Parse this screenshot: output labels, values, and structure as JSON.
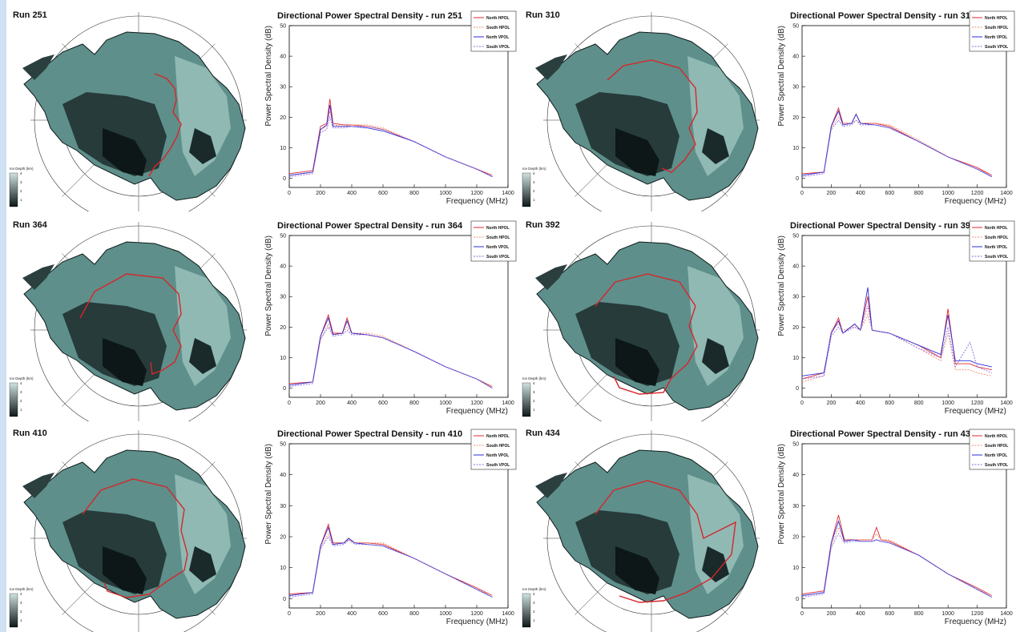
{
  "colors": {
    "north_hpol": "#e0282e",
    "south_hpol": "#f08a6a",
    "north_vpol": "#2a2ed8",
    "south_vpol": "#8a6ae0",
    "ice_dark": "#0d1717",
    "ice_light": "#cfe3e0",
    "flight_path": "#d6262a"
  },
  "colorbar": {
    "title": "Ice Depth (km)",
    "ticks": [
      "4",
      "3",
      "2",
      "1"
    ]
  },
  "panels": [
    {
      "run_label": "Run 251",
      "chart_title": "Directional Power Spectral Density - run 251"
    },
    {
      "run_label": "Run 310",
      "chart_title": "Directional Power Spectral Density - run 310"
    },
    {
      "run_label": "Run 364",
      "chart_title": "Directional Power Spectral Density - run 364"
    },
    {
      "run_label": "Run 392",
      "chart_title": "Directional Power Spectral Density - run 392"
    },
    {
      "run_label": "Run 410",
      "chart_title": "Directional Power Spectral Density - run 410"
    },
    {
      "run_label": "Run 434",
      "chart_title": "Directional Power Spectral Density - run 434"
    }
  ],
  "chart_data": [
    {
      "type": "line",
      "title": "Directional Power Spectral Density - run 251",
      "xlabel": "Frequency (MHz)",
      "ylabel": "Power Spectral Density (dB)",
      "xlim": [
        0,
        1400
      ],
      "ylim": [
        -3,
        50
      ],
      "xticks": [
        "0",
        "200",
        "400",
        "600",
        "800",
        "1000",
        "1200",
        "1400"
      ],
      "yticks": [
        "0",
        "10",
        "20",
        "30",
        "40",
        "50"
      ],
      "legend": [
        "North HPOL",
        "South HPOL",
        "North VPOL",
        "South VPOL"
      ],
      "legend_position": "top-right",
      "x": [
        0,
        150,
        200,
        240,
        260,
        280,
        350,
        400,
        500,
        600,
        800,
        1000,
        1200,
        1300
      ],
      "series": [
        {
          "name": "North HPOL",
          "values": [
            1.5,
            2.5,
            17,
            18,
            26,
            18,
            17.5,
            17.5,
            17,
            16,
            12,
            7,
            3,
            1
          ]
        },
        {
          "name": "South HPOL",
          "values": [
            1,
            2,
            16,
            17,
            22,
            17.5,
            17,
            17.5,
            17.5,
            16.5,
            12,
            7,
            3,
            1
          ]
        },
        {
          "name": "North VPOL",
          "values": [
            1,
            2,
            16,
            17.5,
            24,
            17,
            17,
            17,
            16.5,
            15.5,
            12,
            7,
            3,
            0.5
          ]
        },
        {
          "name": "South VPOL",
          "values": [
            0.5,
            1.5,
            15,
            16,
            20,
            16.5,
            16.5,
            17,
            17,
            16,
            12,
            7,
            3,
            0.5
          ]
        }
      ]
    },
    {
      "type": "line",
      "title": "Directional Power Spectral Density - run 310",
      "xlabel": "Frequency (MHz)",
      "ylabel": "Power Spectral Density (dB)",
      "xlim": [
        0,
        1400
      ],
      "ylim": [
        -3,
        50
      ],
      "xticks": [
        "0",
        "200",
        "400",
        "600",
        "800",
        "1000",
        "1200",
        "1400"
      ],
      "yticks": [
        "0",
        "10",
        "20",
        "30",
        "40",
        "50"
      ],
      "legend": [
        "North HPOL",
        "South HPOL",
        "North VPOL",
        "South VPOL"
      ],
      "legend_position": "top-right",
      "x": [
        0,
        150,
        200,
        250,
        280,
        340,
        370,
        400,
        500,
        600,
        800,
        1000,
        1200,
        1300
      ],
      "series": [
        {
          "name": "North HPOL",
          "values": [
            1.5,
            2,
            17,
            23,
            18,
            18,
            21,
            18,
            18,
            17,
            12,
            7,
            3.5,
            1
          ]
        },
        {
          "name": "South HPOL",
          "values": [
            1,
            2,
            16.5,
            20,
            18,
            18,
            19,
            18,
            18,
            17.5,
            12.5,
            7,
            3,
            1
          ]
        },
        {
          "name": "North VPOL",
          "values": [
            1,
            2,
            17,
            22,
            17.5,
            18,
            21,
            18,
            17.5,
            16.5,
            12,
            7,
            3,
            0.5
          ]
        },
        {
          "name": "South VPOL",
          "values": [
            0.5,
            1.5,
            16,
            19,
            17,
            17.5,
            19,
            17.5,
            17.5,
            16.5,
            12,
            7,
            3,
            0.5
          ]
        }
      ]
    },
    {
      "type": "line",
      "title": "Directional Power Spectral Density - run 364",
      "xlabel": "Frequency (MHz)",
      "ylabel": "Power Spectral Density (dB)",
      "xlim": [
        0,
        1400
      ],
      "ylim": [
        -3,
        50
      ],
      "xticks": [
        "0",
        "200",
        "400",
        "600",
        "800",
        "1000",
        "1200",
        "1400"
      ],
      "yticks": [
        "0",
        "10",
        "20",
        "30",
        "40",
        "50"
      ],
      "legend": [
        "North HPOL",
        "South HPOL",
        "North VPOL",
        "South VPOL"
      ],
      "legend_position": "top-right",
      "x": [
        0,
        150,
        200,
        250,
        280,
        340,
        370,
        400,
        500,
        600,
        800,
        1000,
        1200,
        1300
      ],
      "series": [
        {
          "name": "North HPOL",
          "values": [
            1.5,
            2,
            17,
            24,
            18,
            18,
            23,
            18,
            17.5,
            16.5,
            12,
            7,
            3,
            0.5
          ]
        },
        {
          "name": "South HPOL",
          "values": [
            1,
            2,
            16,
            21,
            17.5,
            18,
            20,
            18,
            18,
            17,
            12,
            7,
            3,
            0.5
          ]
        },
        {
          "name": "North VPOL",
          "values": [
            1,
            2,
            17,
            23,
            17.5,
            18,
            22,
            18,
            17.5,
            16.5,
            12,
            7,
            3,
            0
          ]
        },
        {
          "name": "South VPOL",
          "values": [
            0.5,
            1.5,
            16,
            20,
            17,
            17.5,
            19,
            17.5,
            17.5,
            16.5,
            12,
            7,
            3,
            0
          ]
        }
      ]
    },
    {
      "type": "line",
      "title": "Directional Power Spectral Density - run 392",
      "xlabel": "Frequency (MHz)",
      "ylabel": "Power Spectral Density (dB)",
      "xlim": [
        0,
        1400
      ],
      "ylim": [
        -3,
        50
      ],
      "xticks": [
        "0",
        "200",
        "400",
        "600",
        "800",
        "1000",
        "1200",
        "1400"
      ],
      "yticks": [
        "0",
        "10",
        "20",
        "30",
        "40",
        "50"
      ],
      "legend": [
        "North HPOL",
        "South HPOL",
        "North VPOL",
        "South VPOL"
      ],
      "legend_position": "top-right",
      "x": [
        0,
        150,
        200,
        250,
        280,
        360,
        400,
        450,
        480,
        600,
        800,
        950,
        1000,
        1050,
        1150,
        1200,
        1300
      ],
      "series": [
        {
          "name": "North HPOL",
          "values": [
            3,
            5,
            18,
            23,
            18,
            21,
            19,
            30,
            19,
            18,
            14,
            10,
            26,
            8,
            8,
            7,
            6
          ]
        },
        {
          "name": "South HPOL",
          "values": [
            2,
            4,
            19,
            21,
            19,
            20,
            19,
            24,
            19,
            18,
            13,
            9,
            18,
            6,
            6,
            5,
            4
          ]
        },
        {
          "name": "North VPOL",
          "values": [
            4,
            5,
            18,
            22,
            18,
            21,
            19,
            33,
            19,
            18,
            14,
            11,
            24,
            9,
            9,
            8,
            7
          ]
        },
        {
          "name": "South VPOL",
          "values": [
            3,
            4,
            17,
            20,
            18,
            20,
            19,
            27,
            19,
            18,
            13,
            10,
            20,
            7,
            15,
            7,
            5
          ]
        }
      ]
    },
    {
      "type": "line",
      "title": "Directional Power Spectral Density - run 410",
      "xlabel": "Frequency (MHz)",
      "ylabel": "Power Spectral Density (dB)",
      "xlim": [
        0,
        1400
      ],
      "ylim": [
        -3,
        50
      ],
      "xticks": [
        "0",
        "200",
        "400",
        "600",
        "800",
        "1000",
        "1200",
        "1400"
      ],
      "yticks": [
        "0",
        "10",
        "20",
        "30",
        "40",
        "50"
      ],
      "legend": [
        "North HPOL",
        "South HPOL",
        "North VPOL",
        "South VPOL"
      ],
      "legend_position": "top-right",
      "x": [
        0,
        150,
        200,
        250,
        280,
        350,
        380,
        420,
        500,
        600,
        800,
        1000,
        1200,
        1300
      ],
      "series": [
        {
          "name": "North HPOL",
          "values": [
            1.5,
            2,
            17,
            24,
            18,
            18,
            19.5,
            18,
            18,
            17.5,
            13,
            8,
            3.5,
            1
          ]
        },
        {
          "name": "South HPOL",
          "values": [
            1,
            2,
            16.5,
            21,
            17.5,
            18,
            19,
            18,
            18,
            18,
            13,
            8,
            3,
            1
          ]
        },
        {
          "name": "North VPOL",
          "values": [
            1,
            2,
            17,
            23,
            17.5,
            18,
            19.5,
            18,
            17.5,
            17,
            13,
            8,
            3,
            0.5
          ]
        },
        {
          "name": "South VPOL",
          "values": [
            0.5,
            1.5,
            16,
            20,
            17,
            17.5,
            19,
            17.5,
            17.5,
            17,
            13,
            8,
            3,
            0.5
          ]
        }
      ]
    },
    {
      "type": "line",
      "title": "Directional Power Spectral Density - run 434",
      "xlabel": "Frequency (MHz)",
      "ylabel": "Power Spectral Density (dB)",
      "xlim": [
        0,
        1400
      ],
      "ylim": [
        -3,
        50
      ],
      "xticks": [
        "0",
        "200",
        "400",
        "600",
        "800",
        "1000",
        "1200",
        "1400"
      ],
      "yticks": [
        "0",
        "10",
        "20",
        "30",
        "40",
        "50"
      ],
      "legend": [
        "North HPOL",
        "South HPOL",
        "North VPOL",
        "South VPOL"
      ],
      "legend_position": "top-right",
      "x": [
        0,
        150,
        200,
        250,
        290,
        350,
        400,
        480,
        510,
        540,
        600,
        800,
        1000,
        1200,
        1300
      ],
      "series": [
        {
          "name": "North HPOL",
          "values": [
            1.5,
            2.5,
            18,
            27,
            19,
            19,
            19,
            19,
            23,
            19,
            18.5,
            14,
            8,
            3.5,
            1
          ]
        },
        {
          "name": "South HPOL",
          "values": [
            1,
            2,
            17,
            23,
            18.5,
            19,
            19,
            19,
            21,
            19,
            19,
            14,
            8,
            3,
            1
          ]
        },
        {
          "name": "North VPOL",
          "values": [
            1,
            2,
            18,
            25,
            18.5,
            19,
            18.5,
            18.5,
            19,
            18.5,
            18,
            14,
            8,
            3,
            0.5
          ]
        },
        {
          "name": "South VPOL",
          "values": [
            0.5,
            1.5,
            16.5,
            21,
            18,
            18.5,
            18.5,
            18.5,
            19,
            18.5,
            18,
            14,
            8,
            3,
            0.5
          ]
        }
      ]
    }
  ]
}
